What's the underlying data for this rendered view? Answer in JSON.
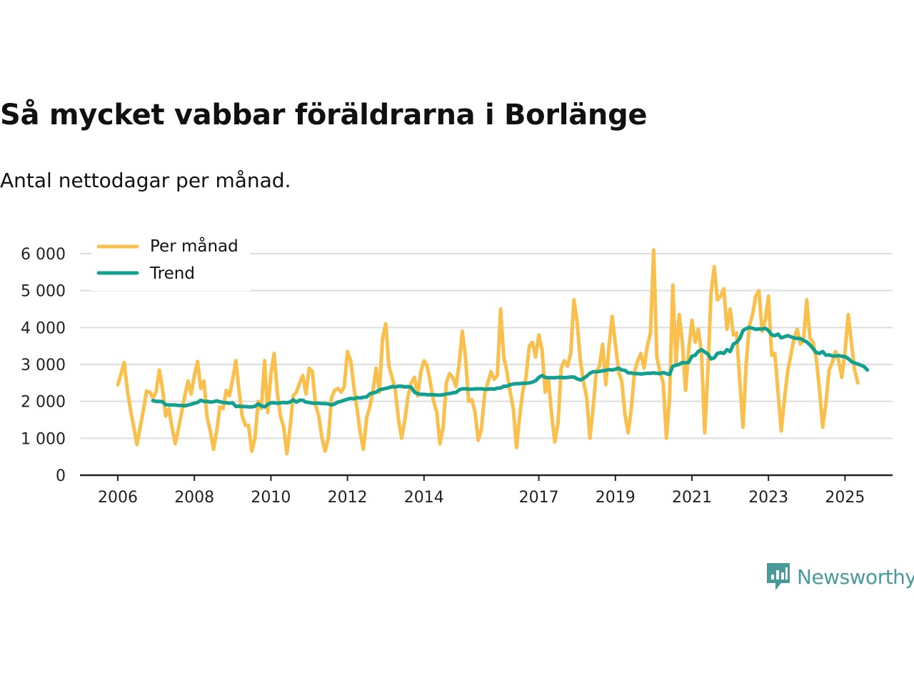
{
  "title": "Så mycket vabbar föräldrarna i Borlänge",
  "subtitle": "Antal nettodagar per månad.",
  "brand": {
    "name": "Newsworthy"
  },
  "colors": {
    "monthly": "#f9c04d",
    "trend": "#14a08e",
    "grid": "#dddddd",
    "axis": "#222222",
    "brand": "#4a9a9a"
  },
  "chart_data": {
    "type": "line",
    "title": "Så mycket vabbar föräldrarna i Borlänge",
    "subtitle": "Antal nettodagar per månad.",
    "xlabel": "",
    "ylabel": "",
    "ylim": [
      0,
      6000
    ],
    "yticks": [
      0,
      1000,
      2000,
      3000,
      4000,
      5000,
      6000
    ],
    "ytick_labels": [
      "0",
      "1 000",
      "2 000",
      "3 000",
      "4 000",
      "5 000",
      "6 000"
    ],
    "xlim": [
      2006.0,
      2025.5
    ],
    "xticks": [
      2006,
      2008,
      2010,
      2012,
      2014,
      2017,
      2019,
      2021,
      2023,
      2025
    ],
    "xtick_labels": [
      "2006",
      "2008",
      "2010",
      "2012",
      "2014",
      "2017",
      "2019",
      "2021",
      "2023",
      "2025"
    ],
    "grid": true,
    "legend_position": "top-left",
    "series": [
      {
        "name": "Per månad",
        "color": "#f9c04d",
        "x_start": 2006.0,
        "x_step": 0.0833333,
        "values": [
          2450,
          2750,
          3050,
          2300,
          1750,
          1300,
          830,
          1300,
          1750,
          2280,
          2250,
          2100,
          2250,
          2850,
          2350,
          1600,
          1800,
          1300,
          850,
          1250,
          1700,
          2150,
          2550,
          2200,
          2700,
          3080,
          2350,
          2550,
          1550,
          1200,
          700,
          1200,
          1850,
          1800,
          2300,
          2150,
          2600,
          3100,
          2300,
          1600,
          1350,
          1350,
          650,
          1000,
          2000,
          1800,
          3100,
          1700,
          2750,
          3300,
          2250,
          1600,
          1300,
          580,
          1300,
          2150,
          2250,
          2500,
          2700,
          2200,
          2900,
          2800,
          1900,
          1600,
          1000,
          650,
          1000,
          2100,
          2300,
          2350,
          2250,
          2400,
          3350,
          3100,
          2400,
          1800,
          1150,
          700,
          1550,
          1850,
          2300,
          2900,
          2250,
          3700,
          4100,
          2950,
          2650,
          2300,
          1500,
          1000,
          1500,
          2150,
          2500,
          2650,
          2150,
          2800,
          3100,
          2950,
          2500,
          2000,
          1700,
          850,
          1300,
          2500,
          2750,
          2650,
          2400,
          3000,
          3900,
          3200,
          2000,
          2050,
          1700,
          950,
          1250,
          2200,
          2500,
          2800,
          2600,
          2700,
          4500,
          3200,
          2800,
          2250,
          1800,
          750,
          1600,
          2300,
          2650,
          3500,
          3600,
          3200,
          3800,
          3400,
          2250,
          2600,
          1650,
          900,
          1400,
          2900,
          3100,
          2950,
          3300,
          4750,
          4150,
          3100,
          2550,
          2100,
          1000,
          1800,
          2800,
          2950,
          3550,
          2450,
          3500,
          4300,
          3550,
          2800,
          2550,
          1650,
          1150,
          1800,
          2800,
          3100,
          3300,
          2900,
          3500,
          3850,
          6100,
          3200,
          2800,
          2500,
          1000,
          2100,
          5150,
          3000,
          4350,
          3600,
          2300,
          3400,
          4200,
          3600,
          3950,
          3300,
          1150,
          2800,
          4950,
          5650,
          4750,
          4850,
          5050,
          3950,
          4500,
          3800,
          3850,
          2550,
          1300,
          3000,
          4050,
          4350,
          4850,
          5000,
          3900,
          4200,
          4850,
          3250,
          3300,
          2250,
          1200,
          2050,
          2800,
          3250,
          3700,
          3950,
          3550,
          3650,
          4750,
          3700,
          3600,
          3150,
          2300,
          1300,
          1950,
          2850,
          3050,
          3350,
          3100,
          2650,
          3350,
          4350,
          3600,
          2850,
          2500
        ]
      },
      {
        "name": "Trend",
        "color": "#14a08e",
        "x_start": 2006.9166667,
        "x_step": 0.0833333,
        "values": [
          2020,
          2000,
          2000,
          1990,
          1910,
          1900,
          1900,
          1900,
          1890,
          1890,
          1880,
          1900,
          1920,
          1950,
          1970,
          2030,
          2000,
          2000,
          1980,
          1990,
          2010,
          1990,
          1970,
          1960,
          1950,
          1960,
          1860,
          1870,
          1860,
          1860,
          1850,
          1850,
          1870,
          1930,
          1880,
          1850,
          1920,
          1960,
          1960,
          1950,
          1960,
          1970,
          1960,
          1980,
          2040,
          1980,
          2030,
          2030,
          1980,
          1970,
          1950,
          1950,
          1950,
          1940,
          1940,
          1930,
          1900,
          1930,
          1980,
          2000,
          2030,
          2060,
          2080,
          2070,
          2100,
          2090,
          2110,
          2120,
          2200,
          2230,
          2250,
          2310,
          2330,
          2350,
          2370,
          2400,
          2390,
          2410,
          2410,
          2390,
          2400,
          2380,
          2250,
          2210,
          2190,
          2190,
          2180,
          2180,
          2180,
          2170,
          2170,
          2180,
          2200,
          2210,
          2230,
          2240,
          2310,
          2340,
          2340,
          2330,
          2330,
          2340,
          2340,
          2340,
          2330,
          2330,
          2340,
          2330,
          2360,
          2360,
          2410,
          2410,
          2450,
          2470,
          2480,
          2480,
          2490,
          2490,
          2500,
          2520,
          2560,
          2650,
          2700,
          2650,
          2640,
          2640,
          2640,
          2650,
          2650,
          2640,
          2650,
          2660,
          2660,
          2610,
          2580,
          2620,
          2680,
          2760,
          2800,
          2800,
          2810,
          2830,
          2840,
          2860,
          2850,
          2870,
          2900,
          2850,
          2840,
          2770,
          2770,
          2750,
          2750,
          2740,
          2750,
          2760,
          2760,
          2770,
          2760,
          2750,
          2780,
          2750,
          2730,
          2950,
          2980,
          3000,
          3050,
          3040,
          3060,
          3220,
          3250,
          3350,
          3400,
          3340,
          3280,
          3150,
          3180,
          3300,
          3320,
          3300,
          3400,
          3350,
          3550,
          3600,
          3700,
          3920,
          3970,
          4000,
          3980,
          3950,
          3960,
          3960,
          3980,
          3920,
          3800,
          3780,
          3820,
          3720,
          3750,
          3780,
          3750,
          3720,
          3700,
          3700,
          3650,
          3610,
          3530,
          3430,
          3320,
          3300,
          3350,
          3250,
          3260,
          3230,
          3230,
          3240,
          3220,
          3210,
          3160,
          3080,
          3040,
          3010,
          2980,
          2940,
          2850
        ]
      }
    ]
  }
}
